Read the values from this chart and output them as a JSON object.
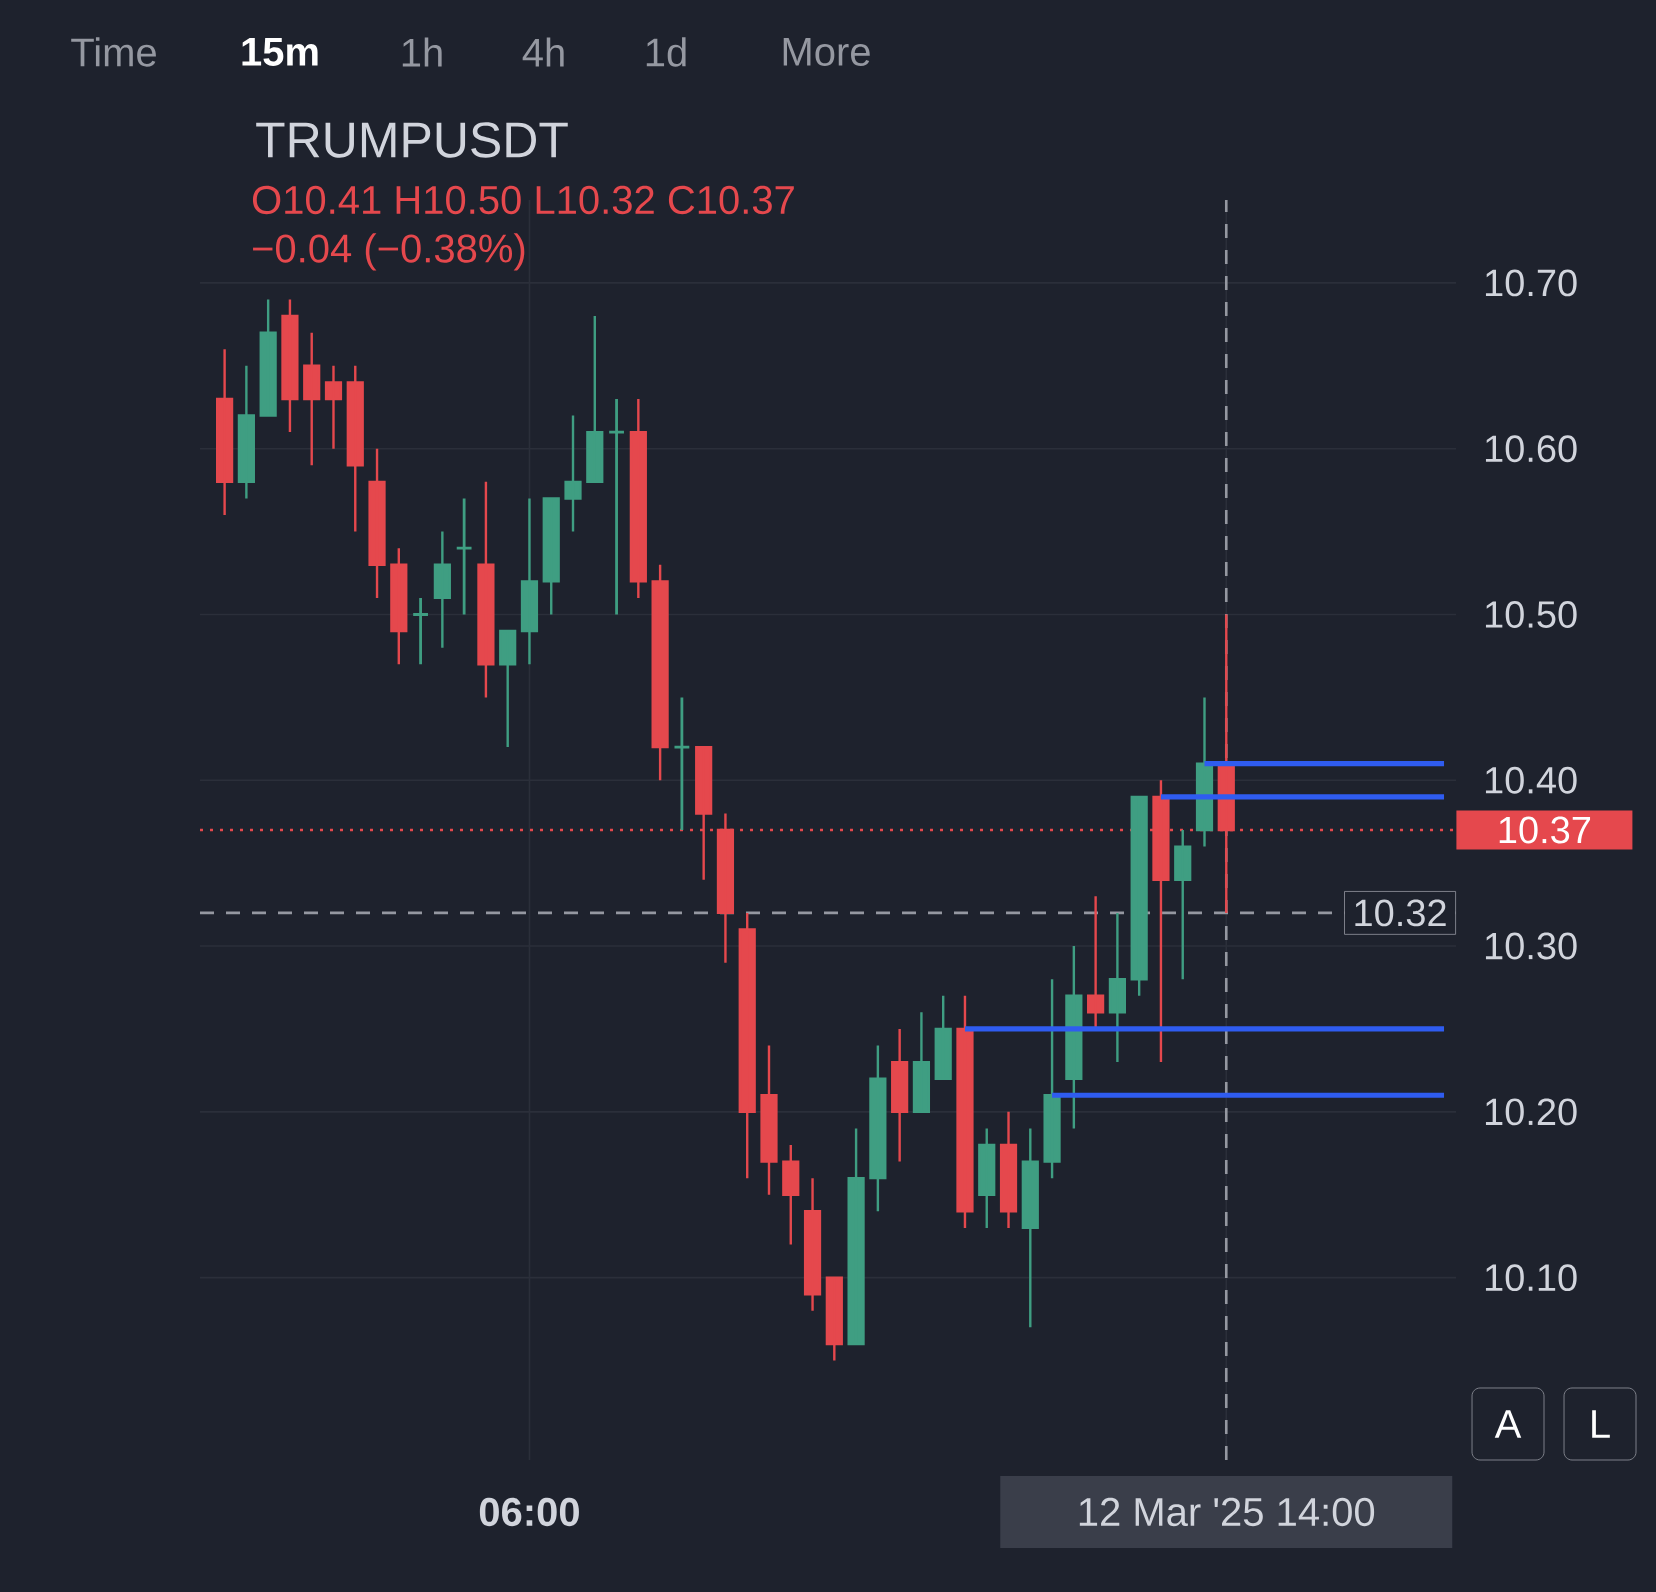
{
  "chart_data": {
    "type": "candlestick",
    "title": "TRUMPUSDT",
    "subtitle": "O10.41 H10.50 L10.32 C10.37",
    "annotations": [
      "−0.04 (−0.38%)",
      "Time",
      "15m",
      "1h",
      "4h",
      "1d",
      "More",
      "A",
      "L"
    ],
    "categories": [
      null,
      null,
      null,
      null,
      null,
      null,
      null,
      null,
      null,
      null,
      null,
      null,
      null,
      null,
      "06:00",
      null,
      null,
      null,
      null,
      null,
      null,
      null,
      null,
      null,
      null,
      null,
      null,
      null,
      null,
      null,
      null,
      null,
      null,
      null,
      null,
      null,
      null,
      null,
      null,
      null,
      null,
      null,
      null,
      null,
      null,
      null,
      "12 Mar '25 14:00",
      null,
      null,
      null,
      null,
      null,
      null,
      null,
      null,
      null,
      null
    ],
    "ohlc": [
      [
        10.63,
        10.66,
        10.56,
        10.58
      ],
      [
        10.58,
        10.65,
        10.57,
        10.62
      ],
      [
        10.62,
        10.69,
        10.62,
        10.67
      ],
      [
        10.68,
        10.69,
        10.61,
        10.63
      ],
      [
        10.65,
        10.67,
        10.59,
        10.63
      ],
      [
        10.64,
        10.65,
        10.6,
        10.63
      ],
      [
        10.64,
        10.65,
        10.55,
        10.59
      ],
      [
        10.58,
        10.6,
        10.51,
        10.53
      ],
      [
        10.53,
        10.54,
        10.47,
        10.49
      ],
      [
        10.5,
        10.51,
        10.47,
        10.5
      ],
      [
        10.51,
        10.55,
        10.48,
        10.53
      ],
      [
        10.54,
        10.57,
        10.5,
        10.54
      ],
      [
        10.53,
        10.58,
        10.45,
        10.47
      ],
      [
        10.47,
        10.49,
        10.42,
        10.49
      ],
      [
        10.49,
        10.57,
        10.47,
        10.52
      ],
      [
        10.52,
        10.57,
        10.5,
        10.57
      ],
      [
        10.57,
        10.62,
        10.55,
        10.58
      ],
      [
        10.58,
        10.68,
        10.58,
        10.61
      ],
      [
        10.61,
        10.63,
        10.5,
        10.61
      ],
      [
        10.61,
        10.63,
        10.51,
        10.52
      ],
      [
        10.52,
        10.53,
        10.4,
        10.42
      ],
      [
        10.42,
        10.45,
        10.37,
        10.42
      ],
      [
        10.42,
        10.42,
        10.34,
        10.38
      ],
      [
        10.37,
        10.38,
        10.29,
        10.32
      ],
      [
        10.31,
        10.32,
        10.16,
        10.2
      ],
      [
        10.21,
        10.24,
        10.15,
        10.17
      ],
      [
        10.17,
        10.18,
        10.12,
        10.15
      ],
      [
        10.14,
        10.16,
        10.08,
        10.09
      ],
      [
        10.1,
        10.1,
        10.05,
        10.06
      ],
      [
        10.06,
        10.19,
        10.06,
        10.16
      ],
      [
        10.16,
        10.24,
        10.14,
        10.22
      ],
      [
        10.23,
        10.25,
        10.17,
        10.2
      ],
      [
        10.2,
        10.26,
        10.2,
        10.23
      ],
      [
        10.22,
        10.27,
        10.22,
        10.25
      ],
      [
        10.25,
        10.27,
        10.13,
        10.14
      ],
      [
        10.15,
        10.19,
        10.13,
        10.18
      ],
      [
        10.18,
        10.2,
        10.13,
        10.14
      ],
      [
        10.13,
        10.19,
        10.07,
        10.17
      ],
      [
        10.17,
        10.28,
        10.16,
        10.21
      ],
      [
        10.22,
        10.3,
        10.19,
        10.27
      ],
      [
        10.27,
        10.33,
        10.25,
        10.26
      ],
      [
        10.26,
        10.32,
        10.23,
        10.28
      ],
      [
        10.28,
        10.39,
        10.27,
        10.39
      ],
      [
        10.39,
        10.4,
        10.23,
        10.34
      ],
      [
        10.34,
        10.37,
        10.28,
        10.36
      ],
      [
        10.37,
        10.45,
        10.36,
        10.41
      ],
      [
        10.41,
        10.5,
        10.32,
        10.37
      ],
      null,
      null,
      null,
      null,
      null,
      null,
      null,
      null,
      null,
      null
    ],
    "series": [
      {
        "type": "line",
        "color": "#2f5cf0",
        "values": [
          null,
          null,
          null,
          null,
          null,
          null,
          null,
          null,
          null,
          null,
          null,
          null,
          null,
          null,
          null,
          null,
          null,
          null,
          null,
          null,
          null,
          null,
          null,
          null,
          null,
          null,
          null,
          null,
          null,
          null,
          null,
          null,
          null,
          null,
          null,
          null,
          null,
          null,
          null,
          null,
          null,
          null,
          null,
          null,
          null,
          10.41,
          10.41,
          10.41,
          10.41,
          10.41,
          10.41,
          10.41,
          10.41,
          10.41,
          10.41,
          10.41,
          10.41
        ]
      },
      {
        "type": "line",
        "color": "#2f5cf0",
        "values": [
          null,
          null,
          null,
          null,
          null,
          null,
          null,
          null,
          null,
          null,
          null,
          null,
          null,
          null,
          null,
          null,
          null,
          null,
          null,
          null,
          null,
          null,
          null,
          null,
          null,
          null,
          null,
          null,
          null,
          null,
          null,
          null,
          null,
          null,
          null,
          null,
          null,
          null,
          null,
          null,
          null,
          null,
          null,
          10.39,
          10.39,
          10.39,
          10.39,
          10.39,
          10.39,
          10.39,
          10.39,
          10.39,
          10.39,
          10.39,
          10.39,
          10.39,
          10.39
        ]
      },
      {
        "type": "line",
        "color": "#2f5cf0",
        "values": [
          null,
          null,
          null,
          null,
          null,
          null,
          null,
          null,
          null,
          null,
          null,
          null,
          null,
          null,
          null,
          null,
          null,
          null,
          null,
          null,
          null,
          null,
          null,
          null,
          null,
          null,
          null,
          null,
          null,
          null,
          null,
          null,
          null,
          null,
          10.25,
          10.25,
          10.25,
          10.25,
          10.25,
          10.25,
          10.25,
          10.25,
          10.25,
          10.25,
          10.25,
          10.25,
          10.25,
          10.25,
          10.25,
          10.25,
          10.25,
          10.25,
          10.25,
          10.25,
          10.25,
          10.25,
          10.25
        ]
      },
      {
        "type": "line",
        "color": "#2f5cf0",
        "values": [
          null,
          null,
          null,
          null,
          null,
          null,
          null,
          null,
          null,
          null,
          null,
          null,
          null,
          null,
          null,
          null,
          null,
          null,
          null,
          null,
          null,
          null,
          null,
          null,
          null,
          null,
          null,
          null,
          null,
          null,
          null,
          null,
          null,
          null,
          null,
          null,
          null,
          null,
          10.21,
          10.21,
          10.21,
          10.21,
          10.21,
          10.21,
          10.21,
          10.21,
          10.21,
          10.21,
          10.21,
          10.21,
          10.21,
          10.21,
          10.21,
          10.21,
          10.21,
          10.21,
          10.21
        ]
      }
    ],
    "ylim": [
      9.99,
      10.75
    ],
    "yticks": [
      {
        "value": 10.1,
        "label": "10.10"
      },
      {
        "value": 10.2,
        "label": "10.20"
      },
      {
        "value": 10.3,
        "label": "10.30"
      },
      {
        "value": 10.4,
        "label": "10.40"
      },
      {
        "value": 10.5,
        "label": "10.50"
      },
      {
        "value": 10.6,
        "label": "10.60"
      },
      {
        "value": 10.7,
        "label": "10.70"
      }
    ],
    "ref_lines": [
      {
        "axis": "y",
        "value": 10.37,
        "label": "10.37",
        "color": "#e5484d",
        "line_style": "dotted"
      },
      {
        "axis": "y",
        "value": 10.32,
        "label": "10.32",
        "color": "#9598a1",
        "line_style": "dashed"
      },
      {
        "axis": "x",
        "value": "12 Mar '25 14:00",
        "color": "#9598a1",
        "line_style": "dashed"
      }
    ],
    "grid": true
  }
}
